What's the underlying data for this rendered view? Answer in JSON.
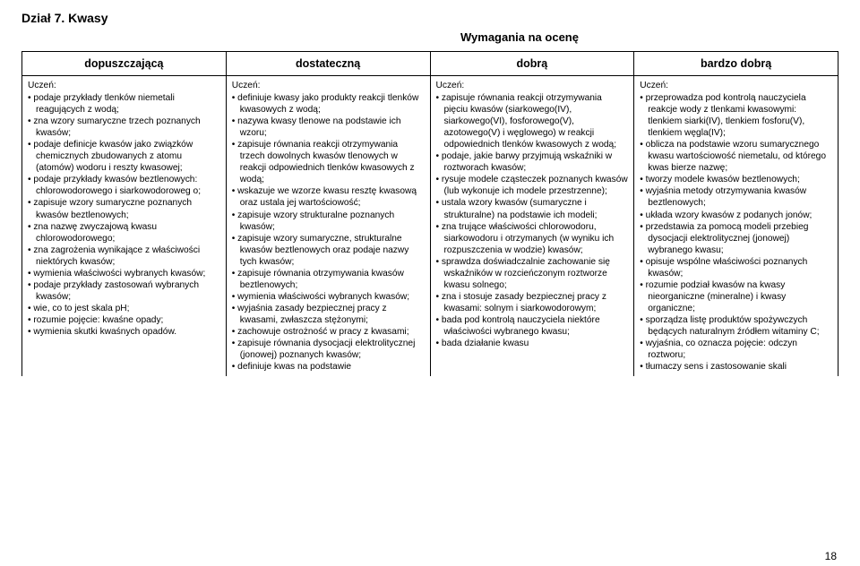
{
  "heading": "Dział 7.  Kwasy",
  "subheading": "Wymagania na ocenę",
  "columns": [
    "dopuszczającą",
    "dostateczną",
    "dobrą",
    "bardzo dobrą"
  ],
  "label_uczen": "Uczeń:",
  "col1": [
    "podaje przykłady tlenków niemetali reagujących z wodą;",
    "zna wzory sumaryczne trzech poznanych kwasów;",
    "podaje definicje kwasów jako związków chemicznych zbudowanych z atomu (atomów) wodoru i reszty kwasowej;",
    "podaje przykłady kwasów beztlenowych: chlorowodorowego i siarkowodoroweg o;",
    "zapisuje wzory sumaryczne poznanych kwasów beztlenowych;",
    "zna nazwę zwyczajową kwasu chlorowodorowego;",
    "zna zagrożenia wynikające z właściwości niektórych kwasów;",
    "wymienia właściwości wybranych kwasów;",
    "podaje przykłady zastosowań wybranych kwasów;",
    "wie, co to jest skala pH;",
    "rozumie pojęcie: kwaśne opady;",
    "wymienia skutki kwaśnych opadów."
  ],
  "col2": [
    "definiuje kwasy jako produkty reakcji tlenków kwasowych z wodą;",
    "nazywa kwasy tlenowe na podstawie ich wzoru;",
    "zapisuje równania reakcji otrzymywania trzech dowolnych kwasów tlenowych w reakcji odpowiednich tlenków kwasowych z wodą;",
    "wskazuje we wzorze kwasu resztę kwasową oraz ustala jej wartościowość;",
    "zapisuje wzory strukturalne poznanych kwasów;",
    "zapisuje wzory sumaryczne, strukturalne kwasów beztlenowych oraz podaje nazwy tych kwasów;",
    "zapisuje równania otrzymywania kwasów beztlenowych;",
    "wymienia właściwości wybranych kwasów;",
    "wyjaśnia zasady bezpiecznej pracy z kwasami, zwłaszcza stężonymi;",
    "zachowuje ostrożność w pracy z kwasami;",
    "zapisuje równania dysocjacji elektrolitycznej (jonowej) poznanych kwasów;",
    "definiuje kwas na podstawie"
  ],
  "col3": [
    "zapisuje równania reakcji otrzymywania pięciu kwasów (siarkowego(IV), siarkowego(VI), fosforowego(V), azotowego(V) i węglowego) w reakcji odpowiednich tlenków kwasowych z wodą;",
    "podaje, jakie barwy przyjmują wskaźniki w roztworach kwasów;",
    "rysuje modele cząsteczek poznanych kwasów (lub wykonuje ich modele przestrzenne);",
    "ustala wzory kwasów (sumaryczne i strukturalne) na podstawie ich modeli;",
    "zna trujące właściwości chlorowodoru, siarkowodoru i otrzymanych (w wyniku ich rozpuszczenia w wodzie) kwasów;",
    "sprawdza doświadczalnie zachowanie się wskaźników w rozcieńczonym roztworze kwasu solnego;",
    "zna i stosuje zasady bezpiecznej pracy z kwasami: solnym i siarkowodorowym;",
    "bada pod kontrolą nauczyciela niektóre właściwości wybranego kwasu;",
    "bada działanie kwasu"
  ],
  "col4": [
    "przeprowadza pod kontrolą nauczyciela reakcje wody z tlenkami kwasowymi: tlenkiem siarki(IV), tlenkiem fosforu(V), tlenkiem węgla(IV);",
    "oblicza na podstawie wzoru sumarycznego kwasu wartościowość niemetalu, od którego kwas bierze nazwę;",
    "tworzy modele kwasów beztlenowych;",
    "wyjaśnia metody otrzymywania kwasów beztlenowych;",
    "układa wzory kwasów z podanych jonów;",
    "przedstawia za pomocą modeli przebieg dysocjacji elektrolitycznej (jonowej) wybranego kwasu;",
    "opisuje wspólne właściwości poznanych kwasów;",
    "rozumie podział kwasów na kwasy nieorganiczne (mineralne) i kwasy organiczne;",
    "sporządza listę produktów spożywczych będących naturalnym źródłem witaminy C;",
    "wyjaśnia, co oznacza pojęcie: odczyn roztworu;",
    "tłumaczy sens i zastosowanie skali"
  ],
  "page": "18"
}
